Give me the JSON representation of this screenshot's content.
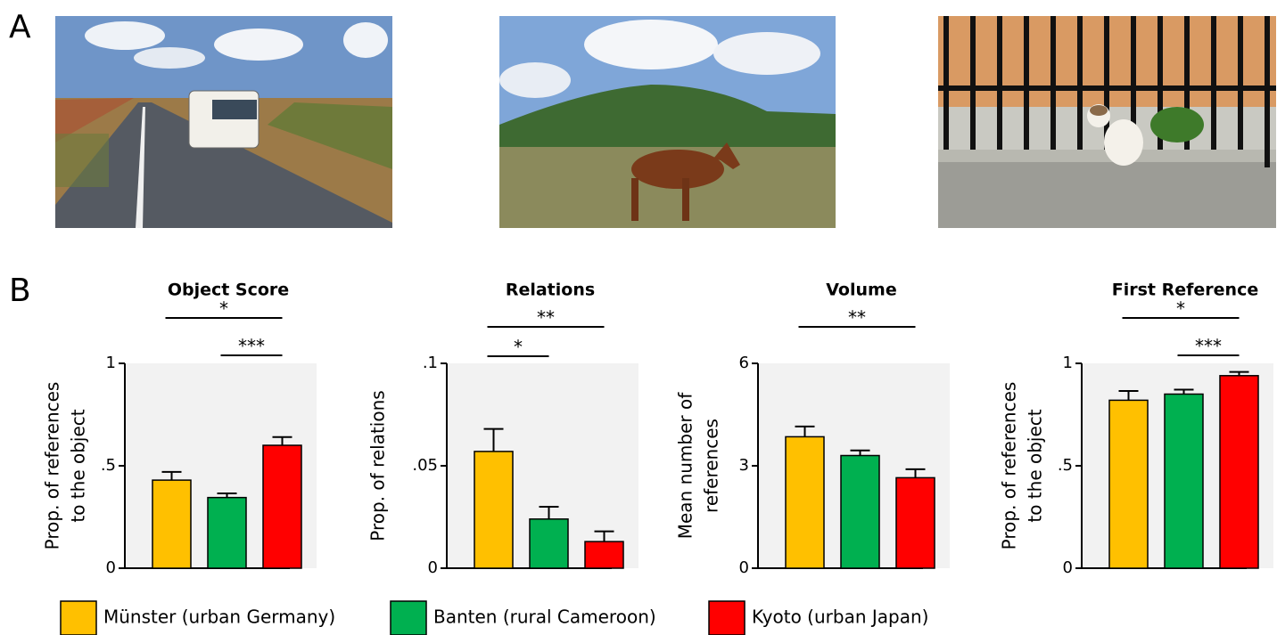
{
  "panel_labels": {
    "a": "A",
    "b": "B"
  },
  "legend": [
    {
      "name": "Münster (urban Germany)",
      "color": "#ffc000"
    },
    {
      "name": "Banten (rural Cameroon)",
      "color": "#00b050"
    },
    {
      "name": "Kyoto (urban Japan)",
      "color": "#ff0000"
    }
  ],
  "chart_data": [
    {
      "type": "bar",
      "title": "Object Score",
      "ylabel": [
        "Prop. of references",
        "to the object"
      ],
      "ylim": [
        0,
        1
      ],
      "yticks": [
        0,
        {
          "value": 0.5,
          "label": ".5"
        },
        1
      ],
      "values": [
        0.43,
        0.345,
        0.6
      ],
      "errors": [
        0.04,
        0.02,
        0.04
      ],
      "significance": [
        {
          "from": 0,
          "to": 2,
          "label": "*"
        },
        {
          "from": 1,
          "to": 2,
          "label": "***"
        }
      ]
    },
    {
      "type": "bar",
      "title": "Relations",
      "ylabel": [
        "Prop. of relations"
      ],
      "ylim": [
        0,
        0.1
      ],
      "yticks": [
        0,
        {
          "value": 0.05,
          "label": ".05"
        },
        {
          "value": 0.1,
          "label": ".1"
        }
      ],
      "values": [
        0.057,
        0.024,
        0.013
      ],
      "errors": [
        0.011,
        0.006,
        0.005
      ],
      "significance": [
        {
          "from": 0,
          "to": 2,
          "label": "**"
        },
        {
          "from": 0,
          "to": 1,
          "label": "*"
        }
      ]
    },
    {
      "type": "bar",
      "title": "Volume",
      "ylabel": [
        "Mean number of",
        "references"
      ],
      "ylim": [
        0,
        6
      ],
      "yticks": [
        0,
        3,
        6
      ],
      "values": [
        3.85,
        3.3,
        2.65
      ],
      "errors": [
        0.3,
        0.15,
        0.25
      ],
      "significance": [
        {
          "from": 0,
          "to": 2,
          "label": "**"
        }
      ]
    },
    {
      "type": "bar",
      "title": "First Reference",
      "ylabel": [
        "Prop. of references",
        "to the object"
      ],
      "ylim": [
        0,
        1
      ],
      "yticks": [
        0,
        {
          "value": 0.5,
          "label": ".5"
        },
        1
      ],
      "values": [
        0.82,
        0.85,
        0.94
      ],
      "errors": [
        0.045,
        0.022,
        0.018
      ],
      "significance": [
        {
          "from": 0,
          "to": 2,
          "label": "*"
        },
        {
          "from": 1,
          "to": 2,
          "label": "***"
        }
      ]
    }
  ]
}
